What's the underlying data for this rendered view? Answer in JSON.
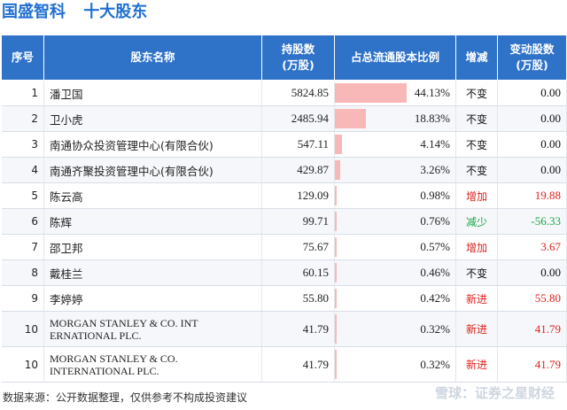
{
  "header": {
    "company": "国盛智科",
    "title": "十大股东"
  },
  "table": {
    "columns": [
      "序号",
      "股东名称",
      "持股数\n(万股)",
      "占总流通股本比例",
      "增减",
      "变动股数\n(万股)"
    ],
    "rows": [
      {
        "idx": "1",
        "name": "潘卫国",
        "hold": "5824.85",
        "pct": "44.13%",
        "pct_value": 44.13,
        "change": "不变",
        "change_type": "same",
        "delta": "0.00"
      },
      {
        "idx": "2",
        "name": "卫小虎",
        "hold": "2485.94",
        "pct": "18.83%",
        "pct_value": 18.83,
        "change": "不变",
        "change_type": "same",
        "delta": "0.00"
      },
      {
        "idx": "3",
        "name": "南通协众投资管理中心(有限合伙)",
        "hold": "547.11",
        "pct": "4.14%",
        "pct_value": 4.14,
        "change": "不变",
        "change_type": "same",
        "delta": "0.00"
      },
      {
        "idx": "4",
        "name": "南通齐聚投资管理中心(有限合伙)",
        "hold": "429.87",
        "pct": "3.26%",
        "pct_value": 3.26,
        "change": "不变",
        "change_type": "same",
        "delta": "0.00"
      },
      {
        "idx": "5",
        "name": "陈云高",
        "hold": "129.09",
        "pct": "0.98%",
        "pct_value": 0.98,
        "change": "增加",
        "change_type": "up",
        "delta": "19.88"
      },
      {
        "idx": "6",
        "name": "陈辉",
        "hold": "99.71",
        "pct": "0.76%",
        "pct_value": 0.76,
        "change": "减少",
        "change_type": "down",
        "delta": "-56.33"
      },
      {
        "idx": "7",
        "name": "邵卫邦",
        "hold": "75.67",
        "pct": "0.57%",
        "pct_value": 0.57,
        "change": "增加",
        "change_type": "up",
        "delta": "3.67"
      },
      {
        "idx": "8",
        "name": "戴桂兰",
        "hold": "60.15",
        "pct": "0.46%",
        "pct_value": 0.46,
        "change": "不变",
        "change_type": "same",
        "delta": "0.00"
      },
      {
        "idx": "9",
        "name": "李婷婷",
        "hold": "55.80",
        "pct": "0.42%",
        "pct_value": 0.42,
        "change": "新进",
        "change_type": "up",
        "delta": "55.80"
      },
      {
        "idx": "10",
        "name": "MORGAN STANLEY & CO. INT ERNATIONAL PLC.",
        "hold": "41.79",
        "pct": "0.32%",
        "pct_value": 0.32,
        "change": "新进",
        "change_type": "up",
        "delta": "41.79"
      },
      {
        "idx": "10",
        "name": "MORGAN STANLEY & CO. INTERNATIONAL PLC.",
        "hold": "41.79",
        "pct": "0.32%",
        "pct_value": 0.32,
        "change": "新进",
        "change_type": "up",
        "delta": "41.79"
      }
    ]
  },
  "footer": {
    "source": "数据来源：公开数据整理，仅供参考不构成投资建议"
  },
  "watermark": {
    "text": "雪球：证券之星财经"
  },
  "colors": {
    "header_bg": "#2f73c9",
    "title": "#1f6fd1",
    "bar": "#f9b8b8",
    "up": "#e0221d",
    "down": "#18a845"
  }
}
